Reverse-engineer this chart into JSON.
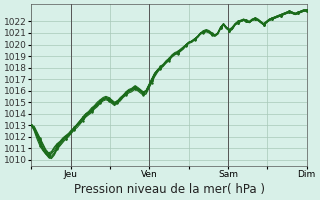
{
  "title": "Pression niveau de la mer( hPa )",
  "bg_color": "#d8f0e8",
  "grid_color": "#a8c8b8",
  "line_color": "#1a6b1a",
  "ylim": [
    1010,
    1023
  ],
  "yticks": [
    1010,
    1011,
    1012,
    1013,
    1014,
    1015,
    1016,
    1017,
    1018,
    1019,
    1020,
    1021,
    1022
  ],
  "xtick_labels": [
    "",
    "Jeu",
    "",
    "Ven",
    "",
    "Sam",
    "",
    "Dim"
  ],
  "xtick_positions": [
    0,
    1,
    2,
    3,
    4,
    5,
    6,
    7
  ],
  "vline_positions": [
    1,
    3,
    5,
    7
  ],
  "num_points": 97,
  "series": [
    [
      1013.0,
      1012.8,
      1012.3,
      1011.8,
      1011.3,
      1010.8,
      1010.5,
      1010.6,
      1011.0,
      1011.3,
      1011.5,
      1011.8,
      1012.0,
      1012.2,
      1012.5,
      1012.7,
      1013.0,
      1013.2,
      1013.5,
      1013.8,
      1014.0,
      1014.2,
      1014.5,
      1014.7,
      1015.0,
      1015.2,
      1015.3,
      1015.2,
      1015.0,
      1014.8,
      1015.0,
      1015.3,
      1015.5,
      1015.8,
      1016.0,
      1016.1,
      1016.3,
      1016.2,
      1016.0,
      1015.8,
      1016.0,
      1016.5,
      1017.0,
      1017.5,
      1017.8,
      1018.0,
      1018.2,
      1018.5,
      1018.7,
      1019.0,
      1019.2,
      1019.3,
      1019.5,
      1019.7,
      1020.0,
      1020.2,
      1020.3,
      1020.5,
      1020.7,
      1021.0,
      1021.2,
      1021.3,
      1021.2,
      1021.0,
      1020.8,
      1021.0,
      1021.5,
      1021.8,
      1021.5,
      1021.3,
      1021.5,
      1021.8,
      1022.0,
      1022.1,
      1022.2,
      1022.1,
      1022.0,
      1022.2,
      1022.3,
      1022.2,
      1022.0,
      1021.8,
      1022.0,
      1022.2,
      1022.3,
      1022.4,
      1022.5,
      1022.6,
      1022.7,
      1022.8,
      1022.9,
      1022.8,
      1022.7,
      1022.8,
      1022.9,
      1023.0,
      1023.0
    ],
    [
      1013.0,
      1012.5,
      1011.8,
      1011.2,
      1010.8,
      1010.5,
      1010.3,
      1010.2,
      1010.5,
      1011.0,
      1011.3,
      1011.6,
      1011.8,
      1012.0,
      1012.3,
      1012.6,
      1012.8,
      1013.1,
      1013.4,
      1013.7,
      1013.9,
      1014.1,
      1014.4,
      1014.6,
      1014.9,
      1015.1,
      1015.2,
      1015.1,
      1014.9,
      1014.7,
      1014.9,
      1015.1,
      1015.4,
      1015.6,
      1015.8,
      1015.9,
      1016.1,
      1016.0,
      1015.8,
      1015.6,
      1015.7,
      1016.2,
      1016.7,
      1017.2,
      1017.6,
      1017.9,
      1018.1,
      1018.4,
      1018.6,
      1018.9,
      1019.1,
      1019.2,
      1019.4,
      1019.6,
      1019.9,
      1020.1,
      1020.2,
      1020.4,
      1020.6,
      1020.9,
      1021.0,
      1021.1,
      1021.0,
      1020.8,
      1020.7,
      1020.9,
      1021.4,
      1021.7,
      1021.4,
      1021.2,
      1021.3,
      1021.7,
      1021.9,
      1022.0,
      1022.1,
      1022.0,
      1021.9,
      1022.1,
      1022.2,
      1022.1,
      1021.9,
      1021.7,
      1021.9,
      1022.1,
      1022.2,
      1022.3,
      1022.4,
      1022.5,
      1022.6,
      1022.7,
      1022.8,
      1022.7,
      1022.6,
      1022.7,
      1022.8,
      1022.9,
      1022.9
    ],
    [
      1013.0,
      1012.7,
      1012.1,
      1011.5,
      1011.0,
      1010.6,
      1010.4,
      1010.3,
      1010.6,
      1011.1,
      1011.4,
      1011.7,
      1012.0,
      1012.2,
      1012.4,
      1012.7,
      1013.0,
      1013.3,
      1013.6,
      1013.8,
      1014.0,
      1014.3,
      1014.5,
      1014.8,
      1015.0,
      1015.2,
      1015.3,
      1015.2,
      1015.0,
      1014.8,
      1015.0,
      1015.2,
      1015.5,
      1015.7,
      1015.9,
      1016.0,
      1016.2,
      1016.1,
      1015.9,
      1015.7,
      1015.8,
      1016.3,
      1016.8,
      1017.3,
      1017.7,
      1018.0,
      1018.2,
      1018.4,
      1018.7,
      1019.0,
      1019.2,
      1019.3,
      1019.5,
      1019.7,
      1020.0,
      1020.2,
      1020.3,
      1020.5,
      1020.7,
      1021.0,
      1021.1,
      1021.2,
      1021.1,
      1020.9,
      1020.8,
      1021.0,
      1021.5,
      1021.8,
      1021.5,
      1021.3,
      1021.4,
      1021.7,
      1021.9,
      1022.0,
      1022.1,
      1022.0,
      1021.9,
      1022.1,
      1022.2,
      1022.1,
      1021.9,
      1021.7,
      1021.9,
      1022.1,
      1022.2,
      1022.3,
      1022.4,
      1022.5,
      1022.6,
      1022.7,
      1022.8,
      1022.7,
      1022.6,
      1022.7,
      1022.8,
      1022.9,
      1022.9
    ],
    [
      1013.0,
      1012.6,
      1012.0,
      1011.4,
      1010.9,
      1010.5,
      1010.2,
      1010.1,
      1010.4,
      1010.9,
      1011.2,
      1011.5,
      1011.8,
      1012.1,
      1012.4,
      1012.7,
      1013.0,
      1013.3,
      1013.7,
      1014.0,
      1014.2,
      1014.5,
      1014.7,
      1015.0,
      1015.2,
      1015.4,
      1015.5,
      1015.4,
      1015.2,
      1015.0,
      1015.1,
      1015.4,
      1015.6,
      1015.9,
      1016.1,
      1016.2,
      1016.4,
      1016.3,
      1016.1,
      1015.9,
      1016.0,
      1016.5,
      1017.0,
      1017.5,
      1017.8,
      1018.1,
      1018.3,
      1018.6,
      1018.8,
      1019.1,
      1019.3,
      1019.4,
      1019.6,
      1019.8,
      1020.0,
      1020.2,
      1020.3,
      1020.5,
      1020.7,
      1021.0,
      1021.1,
      1021.2,
      1021.1,
      1020.9,
      1020.8,
      1020.9,
      1021.4,
      1021.7,
      1021.4,
      1021.2,
      1021.3,
      1021.7,
      1021.9,
      1022.0,
      1022.1,
      1022.0,
      1021.9,
      1022.1,
      1022.2,
      1022.1,
      1021.9,
      1021.8,
      1022.0,
      1022.2,
      1022.3,
      1022.4,
      1022.5,
      1022.6,
      1022.7,
      1022.8,
      1022.9,
      1022.8,
      1022.7,
      1022.8,
      1022.9,
      1023.0,
      1023.0
    ],
    [
      1013.0,
      1012.9,
      1012.4,
      1011.9,
      1011.4,
      1010.9,
      1010.6,
      1010.7,
      1011.1,
      1011.4,
      1011.6,
      1011.9,
      1012.1,
      1012.3,
      1012.6,
      1012.8,
      1013.1,
      1013.4,
      1013.7,
      1014.0,
      1014.1,
      1014.3,
      1014.6,
      1014.8,
      1015.1,
      1015.3,
      1015.4,
      1015.3,
      1015.1,
      1014.9,
      1015.1,
      1015.3,
      1015.6,
      1015.8,
      1016.0,
      1016.1,
      1016.3,
      1016.2,
      1016.0,
      1015.8,
      1015.9,
      1016.4,
      1016.9,
      1017.4,
      1017.7,
      1018.0,
      1018.2,
      1018.5,
      1018.7,
      1019.0,
      1019.2,
      1019.3,
      1019.5,
      1019.7,
      1020.0,
      1020.2,
      1020.3,
      1020.5,
      1020.7,
      1021.0,
      1021.1,
      1021.2,
      1021.1,
      1020.9,
      1020.8,
      1021.0,
      1021.5,
      1021.8,
      1021.5,
      1021.3,
      1021.4,
      1021.8,
      1022.0,
      1022.1,
      1022.2,
      1022.1,
      1022.0,
      1022.2,
      1022.3,
      1022.2,
      1022.0,
      1021.8,
      1022.0,
      1022.2,
      1022.3,
      1022.4,
      1022.5,
      1022.6,
      1022.7,
      1022.8,
      1022.9,
      1022.8,
      1022.7,
      1022.8,
      1022.9,
      1023.0,
      1023.0
    ],
    [
      1013.0,
      1012.7,
      1012.2,
      1011.7,
      1011.1,
      1010.7,
      1010.4,
      1010.5,
      1010.8,
      1011.2,
      1011.5,
      1011.8,
      1012.0,
      1012.2,
      1012.5,
      1012.8,
      1013.1,
      1013.4,
      1013.7,
      1013.9,
      1014.1,
      1014.4,
      1014.6,
      1014.9,
      1015.1,
      1015.3,
      1015.4,
      1015.3,
      1015.1,
      1014.9,
      1015.0,
      1015.3,
      1015.5,
      1015.8,
      1016.0,
      1016.1,
      1016.3,
      1016.2,
      1016.0,
      1015.8,
      1016.0,
      1016.5,
      1017.0,
      1017.5,
      1017.8,
      1018.0,
      1018.2,
      1018.5,
      1018.7,
      1019.0,
      1019.2,
      1019.3,
      1019.5,
      1019.7,
      1020.0,
      1020.2,
      1020.3,
      1020.5,
      1020.7,
      1021.0,
      1021.1,
      1021.2,
      1021.1,
      1020.9,
      1020.8,
      1021.0,
      1021.5,
      1021.7,
      1021.4,
      1021.2,
      1021.3,
      1021.7,
      1021.9,
      1022.0,
      1022.1,
      1022.0,
      1021.9,
      1022.1,
      1022.2,
      1022.1,
      1021.9,
      1021.7,
      1021.9,
      1022.1,
      1022.2,
      1022.3,
      1022.4,
      1022.5,
      1022.6,
      1022.7,
      1022.8,
      1022.7,
      1022.6,
      1022.7,
      1022.8,
      1022.9,
      1022.9
    ]
  ],
  "marker_series_idx": 0,
  "dot_color": "#1a6b1a",
  "line_width": 0.8,
  "tick_fontsize": 6.5,
  "label_fontsize": 8.5
}
